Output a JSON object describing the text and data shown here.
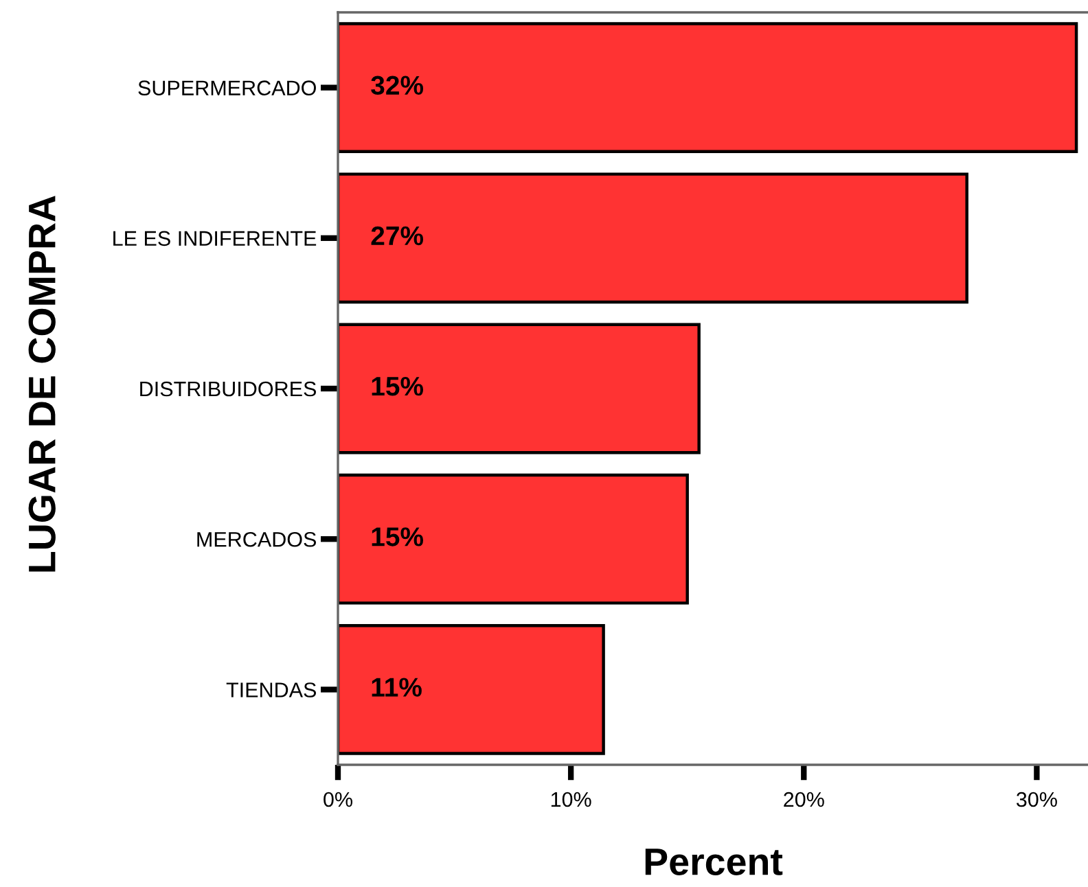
{
  "chart_data": {
    "type": "bar",
    "orientation": "horizontal",
    "categories": [
      "SUPERMERCADO",
      "LE ES INDIFERENTE",
      "DISTRIBUIDORES",
      "MERCADOS",
      "TIENDAS"
    ],
    "values": [
      31.7,
      27.0,
      15.5,
      15.0,
      11.4
    ],
    "value_labels": [
      "32%",
      "27%",
      "15%",
      "15%",
      "11%"
    ],
    "color": "#ff3333",
    "xlim": [
      0,
      32.2
    ],
    "xticks": [
      {
        "value": 0,
        "label": "0%"
      },
      {
        "value": 10,
        "label": "10%"
      },
      {
        "value": 20,
        "label": "20%"
      },
      {
        "value": 30,
        "label": "30%"
      }
    ],
    "xlabel": "Percent",
    "ylabel": "LUGAR DE COMPRA"
  }
}
